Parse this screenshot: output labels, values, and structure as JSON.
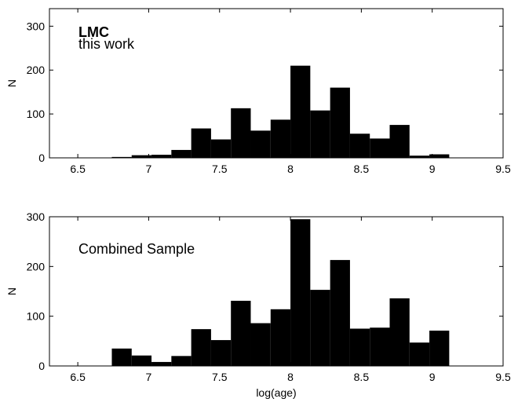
{
  "chart_data": [
    {
      "type": "bar",
      "annotation_bold": "LMC",
      "annotation": "this work",
      "xlabel": "",
      "ylabel": "N",
      "xlim": [
        6.3,
        9.5
      ],
      "ylim": [
        0,
        340
      ],
      "xticks": [
        "6.5",
        "7",
        "7.5",
        "8",
        "8.5",
        "9",
        "9.5"
      ],
      "yticks": [
        "0",
        "100",
        "200",
        "300"
      ],
      "bin_width": 0.14,
      "bins": [
        {
          "x0": 6.74,
          "value": 2
        },
        {
          "x0": 6.88,
          "value": 6
        },
        {
          "x0": 7.02,
          "value": 7
        },
        {
          "x0": 7.16,
          "value": 18
        },
        {
          "x0": 7.3,
          "value": 67
        },
        {
          "x0": 7.44,
          "value": 42
        },
        {
          "x0": 7.58,
          "value": 113
        },
        {
          "x0": 7.72,
          "value": 62
        },
        {
          "x0": 7.86,
          "value": 87
        },
        {
          "x0": 8.0,
          "value": 210
        },
        {
          "x0": 8.14,
          "value": 108
        },
        {
          "x0": 8.28,
          "value": 160
        },
        {
          "x0": 8.42,
          "value": 55
        },
        {
          "x0": 8.56,
          "value": 44
        },
        {
          "x0": 8.7,
          "value": 75
        },
        {
          "x0": 8.84,
          "value": 5
        },
        {
          "x0": 8.98,
          "value": 8
        }
      ]
    },
    {
      "type": "bar",
      "annotation_bold": "",
      "annotation": "Combined Sample",
      "xlabel": "log(age)",
      "ylabel": "N",
      "xlim": [
        6.3,
        9.5
      ],
      "ylim": [
        0,
        300
      ],
      "xticks": [
        "6.5",
        "7",
        "7.5",
        "8",
        "8.5",
        "9",
        "9.5"
      ],
      "yticks": [
        "0",
        "100",
        "200",
        "300"
      ],
      "bin_width": 0.14,
      "bins": [
        {
          "x0": 6.74,
          "value": 35
        },
        {
          "x0": 6.88,
          "value": 21
        },
        {
          "x0": 7.02,
          "value": 8
        },
        {
          "x0": 7.16,
          "value": 20
        },
        {
          "x0": 7.3,
          "value": 74
        },
        {
          "x0": 7.44,
          "value": 52
        },
        {
          "x0": 7.58,
          "value": 131
        },
        {
          "x0": 7.72,
          "value": 86
        },
        {
          "x0": 7.86,
          "value": 114
        },
        {
          "x0": 8.0,
          "value": 295
        },
        {
          "x0": 8.14,
          "value": 153
        },
        {
          "x0": 8.28,
          "value": 213
        },
        {
          "x0": 8.42,
          "value": 75
        },
        {
          "x0": 8.56,
          "value": 77
        },
        {
          "x0": 8.7,
          "value": 136
        },
        {
          "x0": 8.84,
          "value": 47
        },
        {
          "x0": 8.98,
          "value": 71
        }
      ]
    }
  ]
}
